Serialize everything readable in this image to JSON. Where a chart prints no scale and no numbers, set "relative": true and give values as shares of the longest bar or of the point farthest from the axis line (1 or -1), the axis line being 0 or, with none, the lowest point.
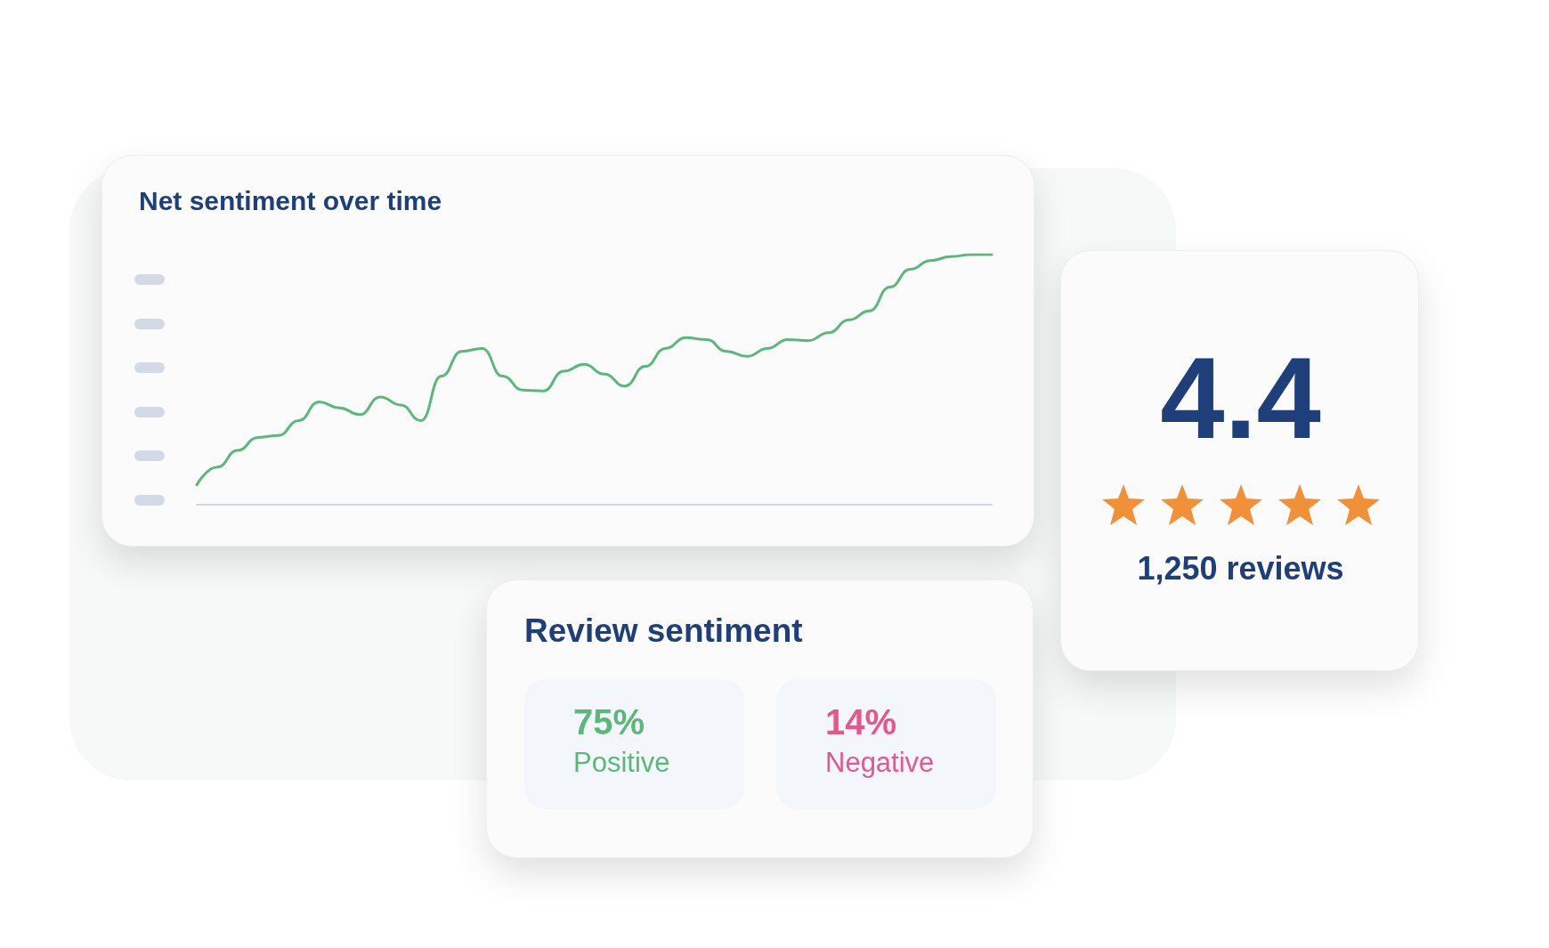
{
  "chart_data": [
    {
      "type": "line",
      "title": "Net sentiment over time",
      "relative": true,
      "categories": [
        null,
        null,
        null,
        null,
        null,
        null,
        null,
        null,
        null,
        null,
        null,
        null,
        null,
        null,
        null,
        null,
        null,
        null,
        null,
        null,
        null,
        null,
        null,
        null,
        null,
        null,
        null,
        null,
        null,
        null,
        null,
        null,
        null,
        null,
        null,
        null,
        null,
        null,
        null,
        null
      ],
      "series": [
        {
          "color": "#5cb87a",
          "values": [
            0.079,
            0.15,
            0.217,
            0.269,
            0.277,
            0.336,
            0.411,
            0.387,
            0.36,
            0.431,
            0.399,
            0.336,
            0.514,
            0.613,
            0.625,
            0.514,
            0.458,
            0.455,
            0.534,
            0.561,
            0.522,
            0.474,
            0.553,
            0.625,
            0.668,
            0.66,
            0.613,
            0.593,
            0.625,
            0.66,
            0.656,
            0.688,
            0.739,
            0.775,
            0.87,
            0.941,
            0.976,
            0.992,
            1,
            1
          ]
        }
      ]
    },
    {
      "type": "other",
      "title": "Review sentiment",
      "annotations": [
        "75%",
        "Positive",
        "14%",
        "Negative"
      ]
    },
    {
      "type": "other",
      "annotations": [
        "4.4",
        "1,250 reviews"
      ]
    }
  ]
}
